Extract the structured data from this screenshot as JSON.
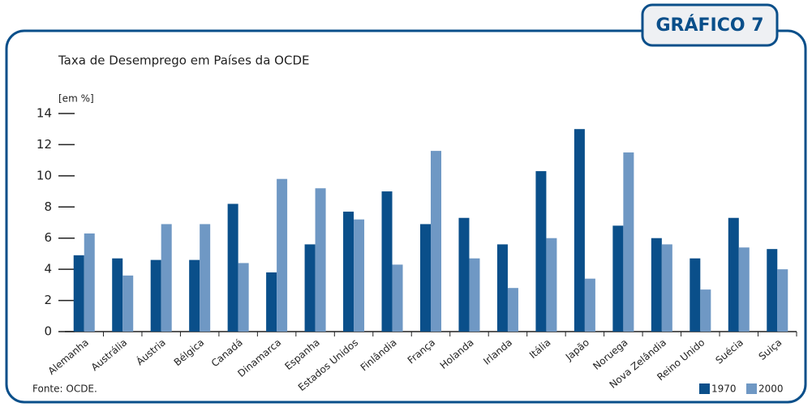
{
  "chart_data": {
    "type": "bar",
    "badge": "GRÁFICO 7",
    "title": "Taxa de Desemprego em Países da OCDE",
    "y_label": "[em %]",
    "source": "Fonte: OCDE.",
    "categories": [
      "Alemanha",
      "Austrália",
      "Áustria",
      "Bélgica",
      "Canadá",
      "Dinamarca",
      "Espanha",
      "Estados Unidos",
      "Finlândia",
      "França",
      "Holanda",
      "Irlanda",
      "Itália",
      "Japão",
      "Noruega",
      "Nova Zelândia",
      "Reino Unido",
      "Suécia",
      "Suiça"
    ],
    "series": [
      {
        "name": "1970",
        "color": "#0a4f8a",
        "values": [
          4.9,
          4.7,
          4.6,
          4.6,
          8.2,
          3.8,
          5.6,
          7.7,
          9.0,
          6.9,
          7.3,
          5.6,
          10.3,
          13.0,
          6.8,
          6.0,
          4.7,
          7.3,
          5.3
        ]
      },
      {
        "name": "2000",
        "color": "#6f98c4",
        "values": [
          6.3,
          3.6,
          6.9,
          6.9,
          4.4,
          9.8,
          9.2,
          7.2,
          4.3,
          11.6,
          4.7,
          2.8,
          6.0,
          3.4,
          11.5,
          5.6,
          2.7,
          5.4,
          4.0
        ]
      }
    ],
    "ylim": [
      0,
      14
    ],
    "yticks": [
      0,
      2,
      4,
      6,
      8,
      10,
      12,
      14
    ],
    "legend": "bottom-right"
  }
}
